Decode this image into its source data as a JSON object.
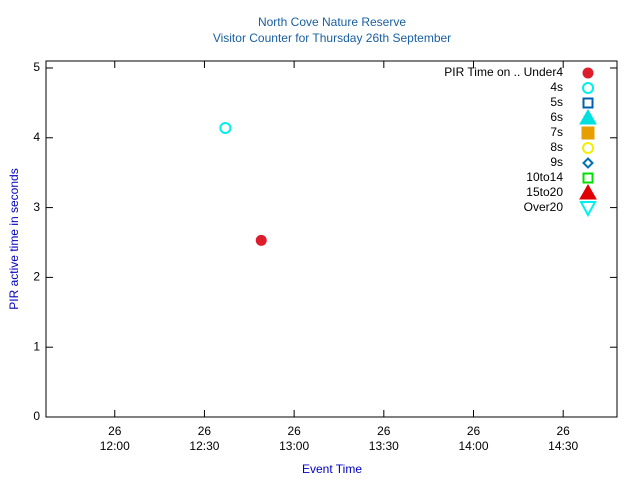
{
  "chart_data": {
    "type": "scatter",
    "title": "North Cove Nature Reserve",
    "subtitle": "Visitor Counter for Thursday 26th September",
    "x_label": "Event Time",
    "y_label": "PIR active time in seconds",
    "xlim": [
      "26 11:37",
      "26 14:48"
    ],
    "xticks": [
      "26 12:00",
      "26 12:30",
      "26 13:00",
      "26 13:30",
      "26 14:00",
      "26 14:30"
    ],
    "ylim": [
      0,
      5.1
    ],
    "yticks": [
      0,
      1,
      2,
      3,
      4,
      5
    ],
    "legend": "top-right",
    "series": [
      {
        "name": "PIR Time on .. Under4",
        "color": "#dd1c2c",
        "marker": "circle-filled",
        "x": [
          "26 12:49"
        ],
        "values": [
          2.53
        ]
      },
      {
        "name": "4s",
        "color": "#00f0f0",
        "marker": "circle",
        "x": [
          "26 12:37"
        ],
        "values": [
          4.14
        ]
      },
      {
        "name": "5s",
        "color": "#0060ad",
        "marker": "square",
        "x": [],
        "values": []
      },
      {
        "name": "6s",
        "color": "#00e0e0",
        "marker": "triangle-filled",
        "x": [],
        "values": []
      },
      {
        "name": "7s",
        "color": "#e69f00",
        "marker": "square-filled",
        "x": [],
        "values": []
      },
      {
        "name": "8s",
        "color": "#f0f000",
        "marker": "circle",
        "x": [],
        "values": []
      },
      {
        "name": "9s",
        "color": "#0072b2",
        "marker": "diamond",
        "x": [],
        "values": []
      },
      {
        "name": "10to14",
        "color": "#00e000",
        "marker": "square",
        "x": [],
        "values": []
      },
      {
        "name": "15to20",
        "color": "#e00000",
        "marker": "triangle-filled",
        "x": [],
        "values": []
      },
      {
        "name": "Over20",
        "color": "#00f0f0",
        "marker": "triangle-down",
        "x": [],
        "values": []
      }
    ]
  }
}
